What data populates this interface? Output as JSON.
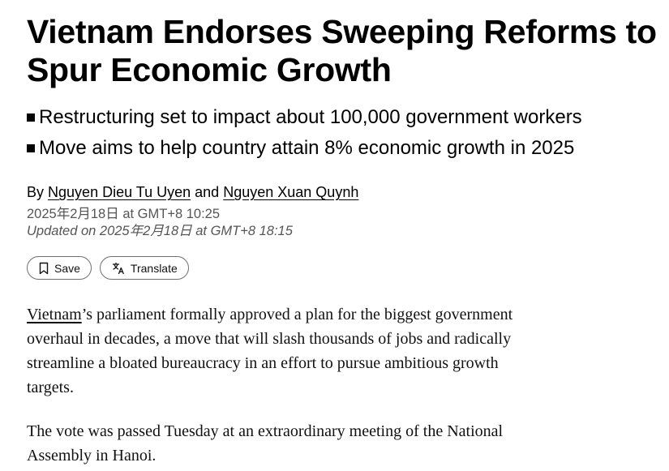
{
  "headline": "Vietnam Endorses Sweeping Reforms to Spur Economic Growth",
  "summary": [
    "Restructuring set to impact about 100,000 government workers",
    "Move aims to help country attain 8% economic growth in 2025"
  ],
  "byline": {
    "prefix": "By",
    "author1": "Nguyen Dieu Tu Uyen",
    "connector": "and",
    "author2": "Nguyen Xuan Quynh"
  },
  "published": "2025年2月18日 at GMT+8 10:25",
  "updated": "Updated on 2025年2月18日 at GMT+8 18:15",
  "actions": {
    "save_label": "Save",
    "translate_label": "Translate",
    "save_icon": "bookmark-icon",
    "translate_icon": "translate-icon"
  },
  "body": {
    "p1_link": "Vietnam",
    "p1_rest": "’s parliament formally approved a plan for the biggest government overhaul in decades, a move that will slash thousands of jobs and radically streamline a bloated bureaucracy in an effort to pursue ambitious growth targets.",
    "p2": "The vote was passed Tuesday at an extraordinary meeting of the National Assembly in Hanoi."
  }
}
